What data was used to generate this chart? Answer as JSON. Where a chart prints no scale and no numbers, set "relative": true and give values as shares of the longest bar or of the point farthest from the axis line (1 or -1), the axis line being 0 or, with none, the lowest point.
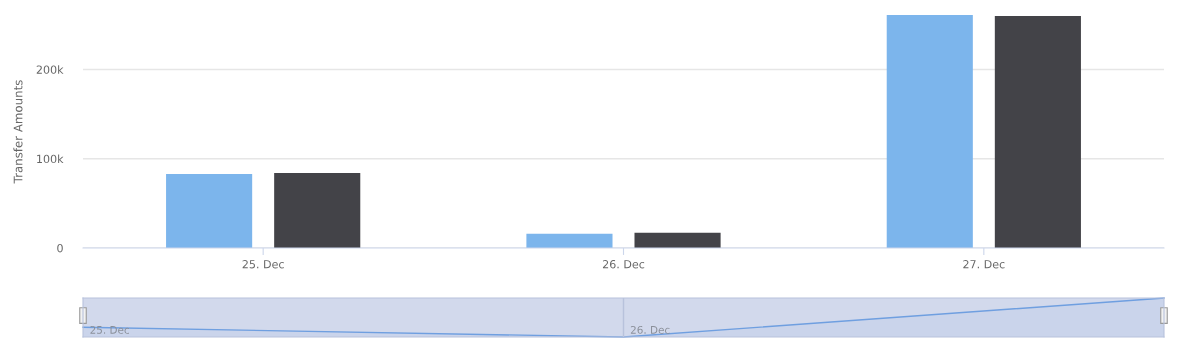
{
  "chart_data": [
    {
      "type": "bar",
      "ylabel": "Transfer Amounts",
      "categories": [
        "25. Dec",
        "26. Dec",
        "27. Dec"
      ],
      "series": [
        {
          "color": "#7cb5ec",
          "values": [
            83000,
            16000,
            261000
          ]
        },
        {
          "color": "#434348",
          "values": [
            84000,
            17000,
            260000
          ]
        }
      ],
      "ylim": [
        0,
        261000
      ],
      "yticks": [
        0,
        {
          "value": 100000,
          "label": "100k"
        },
        {
          "value": 200000,
          "label": "200k"
        }
      ],
      "grid": "y",
      "legend": false
    },
    {
      "type": "area",
      "relative": true,
      "categories": [
        "25. Dec",
        "26. Dec",
        null
      ],
      "series": [
        {
          "color": "#6f9fe0",
          "values": [
            0.25,
            0,
            1
          ]
        }
      ],
      "tick_labels": "x"
    }
  ]
}
